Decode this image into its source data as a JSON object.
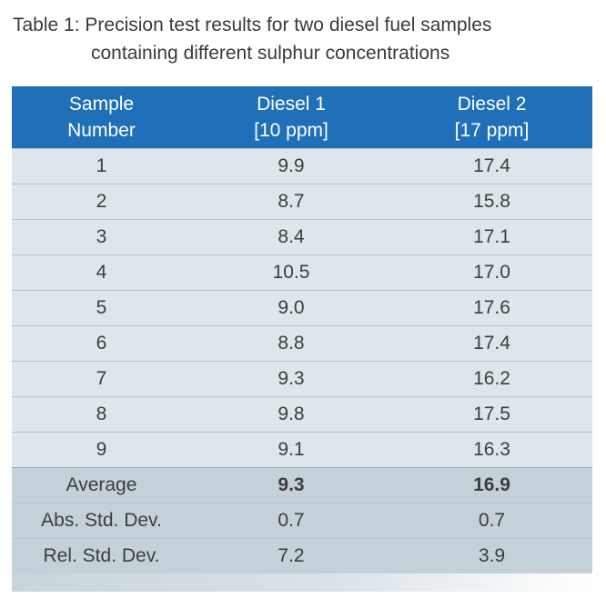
{
  "caption": {
    "line1": "Table 1: Precision test results for two diesel fuel samples",
    "line2": "containing different sulphur concentrations"
  },
  "table": {
    "headers": [
      {
        "line1": "Sample",
        "line2": "Number"
      },
      {
        "line1": "Diesel 1",
        "line2": "[10 ppm]"
      },
      {
        "line1": "Diesel 2",
        "line2": "[17 ppm]"
      }
    ],
    "rows": [
      [
        "1",
        "9.9",
        "17.4"
      ],
      [
        "2",
        "8.7",
        "15.8"
      ],
      [
        "3",
        "8.4",
        "17.1"
      ],
      [
        "4",
        "10.5",
        "17.0"
      ],
      [
        "5",
        "9.0",
        "17.6"
      ],
      [
        "6",
        "8.8",
        "17.4"
      ],
      [
        "7",
        "9.3",
        "16.2"
      ],
      [
        "8",
        "9.8",
        "17.5"
      ],
      [
        "9",
        "9.1",
        "16.3"
      ]
    ],
    "summary": [
      {
        "label": "Average",
        "d1": "9.3",
        "d2": "16.9"
      },
      {
        "label": "Abs. Std. Dev.",
        "d1": "0.7",
        "d2": "0.7"
      },
      {
        "label": "Rel. Std. Dev.",
        "d1": "7.2",
        "d2": "3.9"
      }
    ]
  },
  "colors": {
    "header_bg": "#1f6fb9",
    "row_bg": "#dde6ea",
    "summary_bg": "#c5d1d8"
  }
}
